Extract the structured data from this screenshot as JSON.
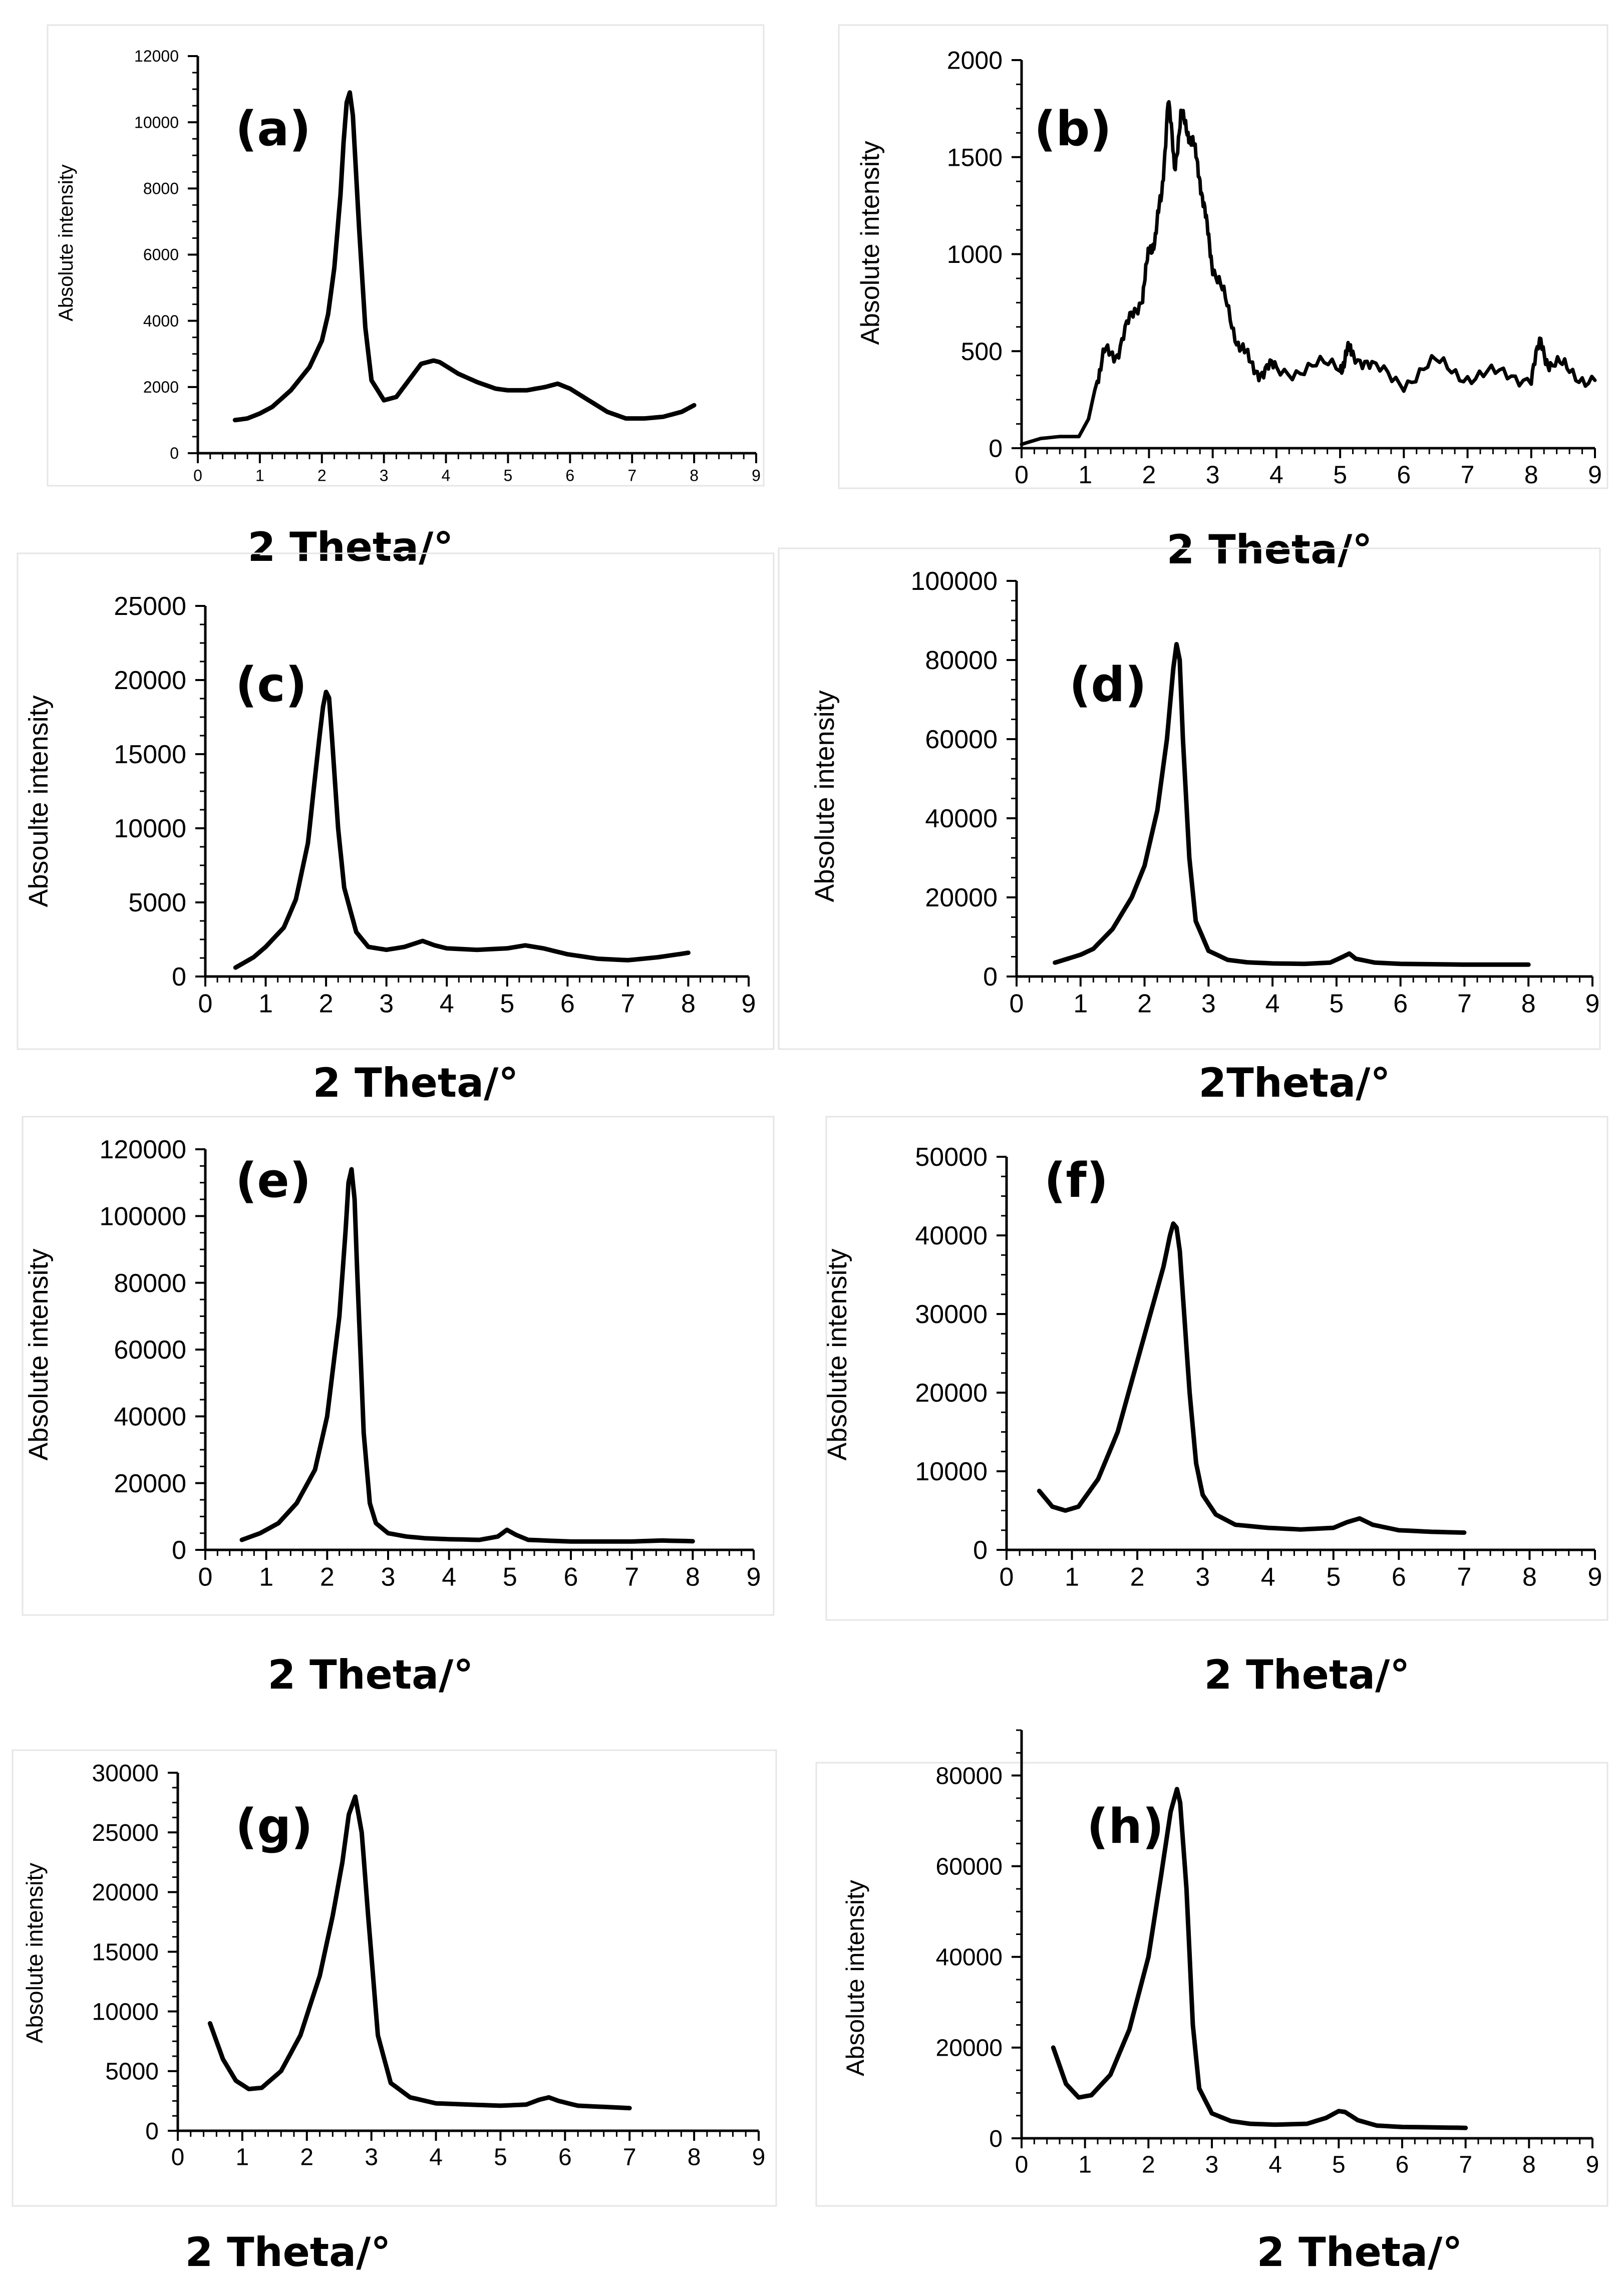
{
  "chart_data": [
    {
      "panel": "(a)",
      "type": "line",
      "title": "",
      "xlabel": "2 Theta/°",
      "ylabel": "Absolute intensity",
      "xlim": [
        0,
        9
      ],
      "ylim": [
        0,
        12000
      ],
      "xticks": [
        "0",
        "1",
        "2",
        "3",
        "4",
        "5",
        "6",
        "7",
        "8",
        "9"
      ],
      "yticks": [
        "0",
        "2000",
        "4000",
        "6000",
        "8000",
        "10000",
        "12000"
      ],
      "series": [
        {
          "name": "(a)",
          "noise": 0,
          "x": [
            0.6,
            0.8,
            1.0,
            1.2,
            1.5,
            1.8,
            2.0,
            2.1,
            2.2,
            2.3,
            2.35,
            2.4,
            2.45,
            2.5,
            2.6,
            2.7,
            2.8,
            3.0,
            3.2,
            3.4,
            3.6,
            3.8,
            3.9,
            4.2,
            4.5,
            4.8,
            5.0,
            5.3,
            5.6,
            5.8,
            6.0,
            6.3,
            6.6,
            6.9,
            7.2,
            7.5,
            7.8,
            8.0
          ],
          "y": [
            1000,
            1050,
            1200,
            1400,
            1900,
            2600,
            3400,
            4200,
            5600,
            7800,
            9400,
            10600,
            10900,
            10200,
            6800,
            3800,
            2200,
            1600,
            1700,
            2200,
            2700,
            2800,
            2750,
            2400,
            2150,
            1950,
            1900,
            1900,
            2000,
            2100,
            1950,
            1600,
            1250,
            1050,
            1050,
            1100,
            1250,
            1450
          ]
        }
      ]
    },
    {
      "panel": "(b)",
      "type": "line",
      "title": "",
      "xlabel": "2 Theta/°",
      "ylabel": "Absolute intensity",
      "xlim": [
        0,
        9
      ],
      "ylim": [
        0,
        2000
      ],
      "xticks": [
        "0",
        "1",
        "2",
        "3",
        "4",
        "5",
        "6",
        "7",
        "8",
        "9"
      ],
      "yticks": [
        "0",
        "500",
        "1000",
        "1500",
        "2000"
      ],
      "series": [
        {
          "name": "(b)",
          "noise": 1,
          "x": [
            0.0,
            0.3,
            0.6,
            0.9,
            1.05,
            1.15,
            1.3,
            1.5,
            1.7,
            1.9,
            2.0,
            2.1,
            2.2,
            2.3,
            2.4,
            2.5,
            2.6,
            2.7,
            2.8,
            2.9,
            3.0,
            3.2,
            3.4,
            3.6,
            3.8,
            4.0,
            4.5,
            5.0,
            5.1,
            5.2,
            5.5,
            6.0,
            6.5,
            7.0,
            7.5,
            8.0,
            8.15,
            8.3,
            8.6,
            9.0
          ],
          "y": [
            20,
            50,
            60,
            60,
            150,
            300,
            480,
            500,
            650,
            800,
            1000,
            1100,
            1300,
            1800,
            1450,
            1700,
            1650,
            1550,
            1400,
            1150,
            950,
            750,
            550,
            420,
            400,
            410,
            410,
            420,
            480,
            510,
            400,
            350,
            430,
            380,
            370,
            380,
            540,
            430,
            400,
            350
          ]
        }
      ]
    },
    {
      "panel": "(c)",
      "type": "line",
      "title": "",
      "xlabel": "2 Theta/°",
      "ylabel": "Absoulte intensity",
      "xlim": [
        0,
        9
      ],
      "ylim": [
        0,
        25000
      ],
      "xticks": [
        "0",
        "1",
        "2",
        "3",
        "4",
        "5",
        "6",
        "7",
        "8",
        "9"
      ],
      "yticks": [
        "0",
        "5000",
        "10000",
        "15000",
        "20000",
        "25000"
      ],
      "series": [
        {
          "name": "(c)",
          "noise": 0,
          "x": [
            0.5,
            0.8,
            1.0,
            1.3,
            1.5,
            1.7,
            1.8,
            1.9,
            1.95,
            2.0,
            2.05,
            2.1,
            2.2,
            2.3,
            2.5,
            2.7,
            3.0,
            3.3,
            3.6,
            3.8,
            4.0,
            4.5,
            5.0,
            5.3,
            5.6,
            6.0,
            6.5,
            7.0,
            7.5,
            8.0
          ],
          "y": [
            600,
            1300,
            2000,
            3300,
            5200,
            9000,
            12800,
            16500,
            18200,
            19200,
            18800,
            16000,
            10000,
            6000,
            3000,
            2000,
            1800,
            2000,
            2400,
            2100,
            1900,
            1800,
            1900,
            2100,
            1900,
            1500,
            1200,
            1100,
            1300,
            1600
          ]
        }
      ]
    },
    {
      "panel": "(d)",
      "type": "line",
      "title": "",
      "xlabel": "2Theta/°",
      "ylabel": "Absolute intensity",
      "xlim": [
        0,
        9
      ],
      "ylim": [
        0,
        100000
      ],
      "xticks": [
        "0",
        "1",
        "2",
        "3",
        "4",
        "5",
        "6",
        "7",
        "8",
        "9"
      ],
      "yticks": [
        "0",
        "20000",
        "40000",
        "60000",
        "80000",
        "100000"
      ],
      "series": [
        {
          "name": "(d)",
          "noise": 0,
          "x": [
            0.6,
            0.8,
            1.0,
            1.2,
            1.5,
            1.8,
            2.0,
            2.2,
            2.35,
            2.45,
            2.5,
            2.55,
            2.6,
            2.7,
            2.8,
            3.0,
            3.3,
            3.6,
            4.0,
            4.5,
            4.9,
            5.1,
            5.2,
            5.3,
            5.6,
            6.0,
            7.0,
            8.0
          ],
          "y": [
            3500,
            4500,
            5500,
            7000,
            12000,
            20000,
            28000,
            42000,
            60000,
            78000,
            84000,
            80000,
            60000,
            30000,
            14000,
            6500,
            4200,
            3600,
            3300,
            3200,
            3500,
            5000,
            5800,
            4500,
            3500,
            3200,
            3000,
            3000
          ]
        }
      ]
    },
    {
      "panel": "(e)",
      "type": "line",
      "title": "",
      "xlabel": "2 Theta/°",
      "ylabel": "Absolute intensity",
      "xlim": [
        0,
        9
      ],
      "ylim": [
        0,
        120000
      ],
      "xticks": [
        "0",
        "1",
        "2",
        "3",
        "4",
        "5",
        "6",
        "7",
        "8",
        "9"
      ],
      "yticks": [
        "0",
        "20000",
        "40000",
        "60000",
        "80000",
        "100000",
        "120000"
      ],
      "series": [
        {
          "name": "(e)",
          "noise": 0,
          "x": [
            0.6,
            0.9,
            1.2,
            1.5,
            1.8,
            2.0,
            2.2,
            2.3,
            2.35,
            2.4,
            2.45,
            2.5,
            2.6,
            2.7,
            2.8,
            3.0,
            3.3,
            3.6,
            4.0,
            4.5,
            4.8,
            4.95,
            5.1,
            5.3,
            6.0,
            7.0,
            7.5,
            8.0
          ],
          "y": [
            3000,
            5000,
            8000,
            14000,
            24000,
            40000,
            70000,
            95000,
            110000,
            114000,
            105000,
            80000,
            35000,
            14000,
            8000,
            5000,
            4000,
            3500,
            3200,
            3000,
            4000,
            6000,
            4500,
            3000,
            2500,
            2500,
            2800,
            2600
          ]
        }
      ]
    },
    {
      "panel": "(f)",
      "type": "line",
      "title": "",
      "xlabel": "2 Theta/°",
      "ylabel": "Absolute intensity",
      "xlim": [
        0,
        9
      ],
      "ylim": [
        0,
        50000
      ],
      "xticks": [
        "0",
        "1",
        "2",
        "3",
        "4",
        "5",
        "6",
        "7",
        "8",
        "9"
      ],
      "yticks": [
        "0",
        "10000",
        "20000",
        "30000",
        "40000",
        "50000"
      ],
      "series": [
        {
          "name": "(f)",
          "noise": 0,
          "x": [
            0.5,
            0.7,
            0.9,
            1.1,
            1.4,
            1.7,
            2.0,
            2.2,
            2.4,
            2.5,
            2.55,
            2.6,
            2.65,
            2.7,
            2.8,
            2.9,
            3.0,
            3.2,
            3.5,
            4.0,
            4.5,
            5.0,
            5.2,
            5.4,
            5.6,
            6.0,
            6.5,
            7.0
          ],
          "y": [
            7500,
            5500,
            5000,
            5500,
            9000,
            15000,
            24000,
            30000,
            36000,
            40000,
            41500,
            41000,
            38000,
            32000,
            20000,
            11000,
            7000,
            4500,
            3200,
            2800,
            2600,
            2800,
            3500,
            4000,
            3200,
            2500,
            2300,
            2200
          ]
        }
      ]
    },
    {
      "panel": "(g)",
      "type": "line",
      "title": "",
      "xlabel": "2 Theta/°",
      "ylabel": "Absolute intensity",
      "xlim": [
        0,
        9
      ],
      "ylim": [
        0,
        30000
      ],
      "xticks": [
        "0",
        "1",
        "2",
        "3",
        "4",
        "5",
        "6",
        "7",
        "8",
        "9"
      ],
      "yticks": [
        "0",
        "5000",
        "10000",
        "15000",
        "20000",
        "25000",
        "30000"
      ],
      "series": [
        {
          "name": "(g)",
          "noise": 0,
          "x": [
            0.5,
            0.7,
            0.9,
            1.1,
            1.3,
            1.6,
            1.9,
            2.2,
            2.4,
            2.55,
            2.65,
            2.75,
            2.85,
            2.95,
            3.1,
            3.3,
            3.6,
            4.0,
            4.5,
            5.0,
            5.4,
            5.6,
            5.75,
            5.9,
            6.2,
            6.6,
            7.0
          ],
          "y": [
            9000,
            6000,
            4200,
            3500,
            3600,
            5000,
            8000,
            13000,
            18000,
            22500,
            26500,
            28000,
            25000,
            18000,
            8000,
            4000,
            2800,
            2300,
            2200,
            2100,
            2200,
            2600,
            2800,
            2500,
            2100,
            2000,
            1900
          ]
        }
      ]
    },
    {
      "panel": "(h)",
      "type": "line",
      "title": "",
      "xlabel": "2 Theta/°",
      "ylabel": "Absolute intensity",
      "xlim": [
        0,
        9
      ],
      "ylim": [
        0,
        90000
      ],
      "xticks": [
        "0",
        "1",
        "2",
        "3",
        "4",
        "5",
        "6",
        "7",
        "8",
        "9"
      ],
      "yticks": [
        "0",
        "20000",
        "40000",
        "60000",
        "80000"
      ],
      "series": [
        {
          "name": "(h)",
          "noise": 0,
          "x": [
            0.5,
            0.7,
            0.9,
            1.1,
            1.4,
            1.7,
            2.0,
            2.2,
            2.35,
            2.45,
            2.5,
            2.6,
            2.7,
            2.8,
            3.0,
            3.3,
            3.6,
            4.0,
            4.5,
            4.8,
            5.0,
            5.1,
            5.3,
            5.6,
            6.0,
            6.5,
            7.0
          ],
          "y": [
            20000,
            12000,
            9000,
            9500,
            14000,
            24000,
            40000,
            58000,
            72000,
            77000,
            74000,
            55000,
            25000,
            11000,
            5500,
            3800,
            3200,
            3000,
            3200,
            4500,
            6000,
            5800,
            4000,
            2800,
            2500,
            2400,
            2300
          ]
        }
      ]
    }
  ]
}
